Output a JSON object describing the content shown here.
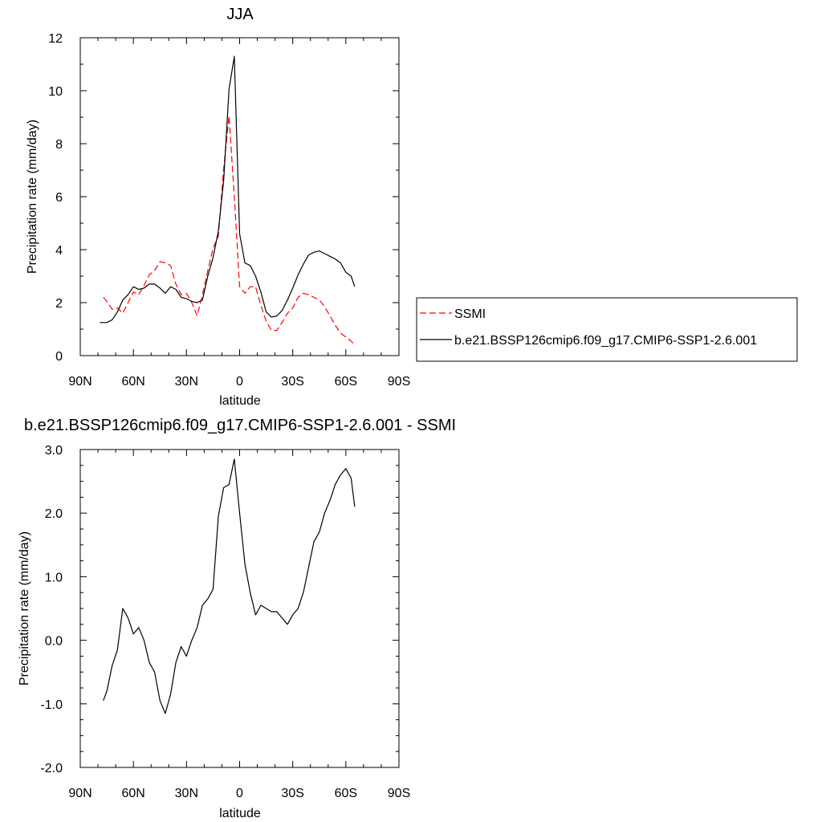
{
  "chart_data": [
    {
      "type": "line",
      "title": "JJA",
      "xlabel": "latitude",
      "ylabel": "Precipitation rate (mm/day)",
      "x_ticks": [
        90,
        60,
        30,
        0,
        -30,
        -60,
        -90
      ],
      "x_tick_labels": [
        "90N",
        "60N",
        "30N",
        "0",
        "30S",
        "60S",
        "90S"
      ],
      "xlim": [
        90,
        -90
      ],
      "ylim": [
        0,
        12
      ],
      "y_ticks": [
        0,
        2,
        4,
        6,
        8,
        10,
        12
      ],
      "y_tick_labels": [
        "0",
        "2",
        "4",
        "6",
        "8",
        "10",
        "12"
      ],
      "legend_position": "right",
      "series": [
        {
          "name": "SSMI",
          "color": "#ff0000",
          "dash": "dashed",
          "x": [
            77,
            75,
            72,
            69,
            66,
            63,
            60,
            57,
            54,
            51,
            48,
            45,
            42,
            39,
            36,
            33,
            30,
            27,
            24,
            21,
            18,
            15,
            12,
            9,
            6,
            3,
            0,
            -3,
            -6,
            -9,
            -12,
            -15,
            -18,
            -21,
            -24,
            -27,
            -30,
            -33,
            -36,
            -39,
            -42,
            -45,
            -48,
            -51,
            -54,
            -57,
            -60,
            -63,
            -65
          ],
          "y": [
            2.2,
            2.05,
            1.75,
            1.8,
            1.6,
            2.0,
            2.4,
            2.3,
            2.65,
            3.05,
            3.2,
            3.55,
            3.5,
            3.4,
            2.7,
            2.3,
            2.35,
            2.0,
            1.5,
            2.3,
            3.2,
            4.05,
            4.5,
            7.05,
            9.05,
            6.0,
            2.6,
            2.35,
            2.6,
            2.6,
            1.9,
            1.3,
            0.95,
            0.95,
            1.25,
            1.6,
            1.8,
            2.2,
            2.35,
            2.3,
            2.2,
            2.1,
            1.85,
            1.5,
            1.15,
            0.85,
            0.7,
            0.55,
            0.4
          ]
        },
        {
          "name": "b.e21.BSSP126cmip6.f09_g17.CMIP6-SSP1-2.6.001",
          "color": "#000000",
          "dash": "solid",
          "x": [
            79,
            75,
            72,
            69,
            66,
            63,
            60,
            57,
            54,
            51,
            48,
            45,
            42,
            39,
            36,
            33,
            30,
            27,
            24,
            21,
            18,
            15,
            12,
            9,
            6,
            3,
            0,
            -3,
            -6,
            -9,
            -12,
            -15,
            -18,
            -21,
            -24,
            -27,
            -30,
            -33,
            -36,
            -39,
            -42,
            -45,
            -48,
            -51,
            -54,
            -57,
            -60,
            -63,
            -65
          ],
          "y": [
            1.25,
            1.25,
            1.35,
            1.65,
            2.1,
            2.3,
            2.6,
            2.5,
            2.55,
            2.7,
            2.7,
            2.55,
            2.35,
            2.6,
            2.5,
            2.2,
            2.15,
            2.05,
            2.0,
            2.1,
            3.0,
            3.7,
            4.7,
            6.6,
            10.05,
            11.3,
            4.6,
            3.5,
            3.4,
            3.0,
            2.4,
            1.65,
            1.45,
            1.5,
            1.7,
            2.1,
            2.55,
            3.05,
            3.45,
            3.8,
            3.9,
            3.95,
            3.85,
            3.75,
            3.65,
            3.5,
            3.15,
            3.0,
            2.6
          ]
        }
      ]
    },
    {
      "type": "line",
      "title": "b.e21.BSSP126cmip6.f09_g17.CMIP6-SSP1-2.6.001 - SSMI",
      "xlabel": "latitude",
      "ylabel": "Precipitation rate (mm/day)",
      "x_ticks": [
        90,
        60,
        30,
        0,
        -30,
        -60,
        -90
      ],
      "x_tick_labels": [
        "90N",
        "60N",
        "30N",
        "0",
        "30S",
        "60S",
        "90S"
      ],
      "xlim": [
        90,
        -90
      ],
      "ylim": [
        -2,
        3
      ],
      "y_ticks": [
        -2,
        -1,
        0,
        1,
        2,
        3
      ],
      "y_tick_labels": [
        "-2.0",
        "-1.0",
        "0.0",
        "1.0",
        "2.0",
        "3.0"
      ],
      "series": [
        {
          "name": "",
          "color": "#000000",
          "dash": "solid",
          "x": [
            77,
            75,
            72,
            69,
            66,
            63,
            60,
            57,
            54,
            51,
            48,
            45,
            42,
            39,
            36,
            33,
            30,
            27,
            24,
            21,
            18,
            15,
            12,
            9,
            6,
            3,
            0,
            -3,
            -6,
            -9,
            -12,
            -15,
            -18,
            -21,
            -24,
            -27,
            -30,
            -33,
            -36,
            -39,
            -42,
            -45,
            -48,
            -51,
            -54,
            -57,
            -60,
            -63,
            -65
          ],
          "y": [
            -0.95,
            -0.8,
            -0.4,
            -0.15,
            0.5,
            0.35,
            0.1,
            0.2,
            0.0,
            -0.35,
            -0.5,
            -0.95,
            -1.15,
            -0.85,
            -0.35,
            -0.1,
            -0.25,
            0.0,
            0.2,
            0.55,
            0.65,
            0.8,
            1.95,
            2.4,
            2.45,
            2.85,
            2.0,
            1.2,
            0.75,
            0.4,
            0.55,
            0.5,
            0.45,
            0.45,
            0.35,
            0.25,
            0.4,
            0.5,
            0.75,
            1.15,
            1.55,
            1.7,
            2.0,
            2.2,
            2.45,
            2.6,
            2.7,
            2.55,
            2.1
          ]
        }
      ]
    }
  ]
}
